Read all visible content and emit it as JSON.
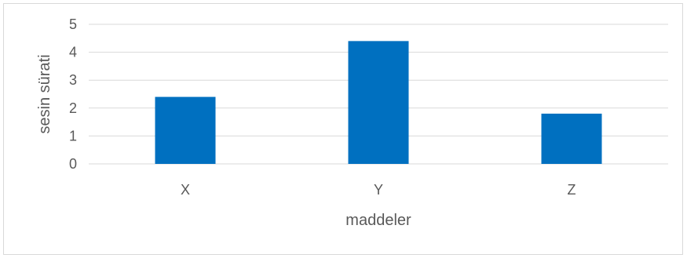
{
  "chart_data": {
    "type": "bar",
    "categories": [
      "X",
      "Y",
      "Z"
    ],
    "values": [
      2.4,
      4.4,
      1.8
    ],
    "xlabel": "maddeler",
    "ylabel": "sesin sürati",
    "ylim": [
      0,
      5
    ],
    "yticks": [
      "0",
      "1",
      "2",
      "3",
      "4",
      "5"
    ],
    "grid": true,
    "legend": "none",
    "colors": {
      "bar": "#0070C0",
      "grid": "#d9d9d9",
      "text": "#595959",
      "border": "#d9d9d9"
    }
  }
}
